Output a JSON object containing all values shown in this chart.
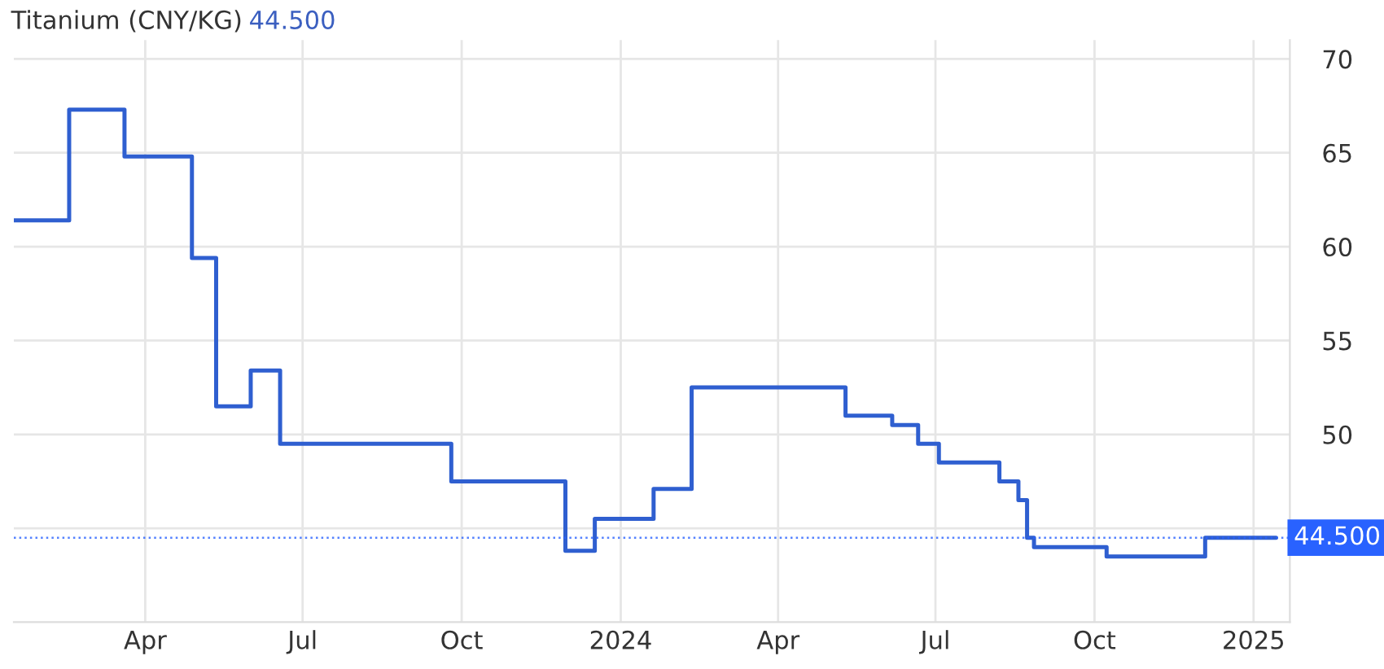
{
  "chart_data": {
    "type": "step",
    "title": "Titanium (CNY/KG)",
    "subtitle": "44.500",
    "series": [
      {
        "color": "#2f5fd0",
        "x": [
          "2023-01-15",
          "2023-02-16",
          "2023-03-20",
          "2023-04-28",
          "2023-05-12",
          "2023-06-01",
          "2023-06-18",
          "2023-09-25",
          "2023-11-30",
          "2023-12-17",
          "2024-01-20",
          "2024-02-11",
          "2024-05-10",
          "2024-06-06",
          "2024-06-21",
          "2024-07-03",
          "2024-08-07",
          "2024-08-18",
          "2024-08-23",
          "2024-08-27",
          "2024-10-08",
          "2024-12-04",
          "2025-01-14"
        ],
        "values": [
          61.4,
          67.3,
          64.8,
          59.4,
          51.5,
          53.4,
          49.5,
          47.5,
          43.8,
          45.5,
          47.1,
          52.5,
          51.0,
          50.5,
          49.5,
          48.5,
          47.5,
          46.5,
          44.5,
          44.0,
          43.5,
          44.5,
          44.5
        ]
      }
    ],
    "xlim": [
      "2023-01-15",
      "2025-01-22"
    ],
    "xticks": [
      {
        "value": "2023-04-01",
        "label": "Apr"
      },
      {
        "value": "2023-07-01",
        "label": "Jul"
      },
      {
        "value": "2023-10-01",
        "label": "Oct"
      },
      {
        "value": "2024-01-01",
        "label": "2024"
      },
      {
        "value": "2024-04-01",
        "label": "Apr"
      },
      {
        "value": "2024-07-01",
        "label": "Jul"
      },
      {
        "value": "2024-10-01",
        "label": "Oct"
      },
      {
        "value": "2025-01-01",
        "label": "2025"
      }
    ],
    "ylim": [
      40,
      71
    ],
    "yticks": [
      {
        "value": 45,
        "label": null
      },
      50,
      55,
      60,
      65,
      70
    ],
    "ref_lines": [
      {
        "axis": "y",
        "value": 44.5,
        "label": "44.500",
        "color": "#2962ff",
        "line_style": "dotted"
      }
    ],
    "grid": true
  }
}
